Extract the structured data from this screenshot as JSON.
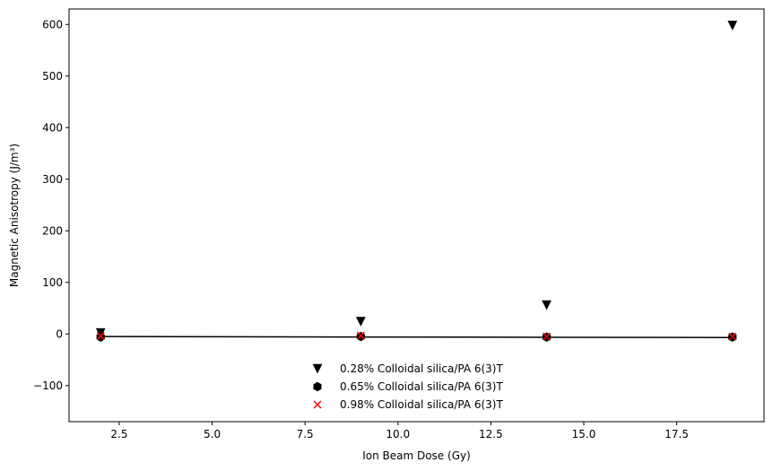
{
  "chart_data": {
    "type": "scatter",
    "xlabel": "Ion Beam Dose (Gy)",
    "ylabel": "Magnetic Anisotropy (J/m³)",
    "xlim": [
      1.15,
      19.85
    ],
    "ylim": [
      -170,
      630
    ],
    "xticks": [
      2.5,
      5.0,
      7.5,
      10.0,
      12.5,
      15.0,
      17.5
    ],
    "xtick_labels": [
      "2.5",
      "5.0",
      "7.5",
      "10.0",
      "12.5",
      "15.0",
      "17.5"
    ],
    "yticks": [
      -100,
      0,
      100,
      200,
      300,
      400,
      500,
      600
    ],
    "ytick_labels": [
      "−100",
      "0",
      "100",
      "200",
      "300",
      "400",
      "500",
      "600"
    ],
    "grid": false,
    "legend_position": "lower-center",
    "series": [
      {
        "name": "0.28% Colloidal silica/PA 6(3)T",
        "marker": "triangle-down",
        "color": "#000000",
        "x": [
          2,
          9,
          14,
          19
        ],
        "y": [
          2,
          24,
          56,
          598
        ]
      },
      {
        "name": "0.65% Colloidal silica/PA 6(3)T",
        "marker": "hexagon",
        "color": "#000000",
        "x": [
          2,
          9,
          14,
          19
        ],
        "y": [
          -6,
          -5,
          -6,
          -6
        ]
      },
      {
        "name": "0.98% Colloidal silica/PA 6(3)T",
        "marker": "x",
        "color": "#ff0000",
        "x": [
          2,
          9,
          14,
          19
        ],
        "y": [
          -4,
          -3,
          -5,
          -5
        ]
      }
    ],
    "fit_line": {
      "color": "#000000",
      "x": [
        2,
        19
      ],
      "y": [
        -5,
        -7
      ]
    }
  }
}
